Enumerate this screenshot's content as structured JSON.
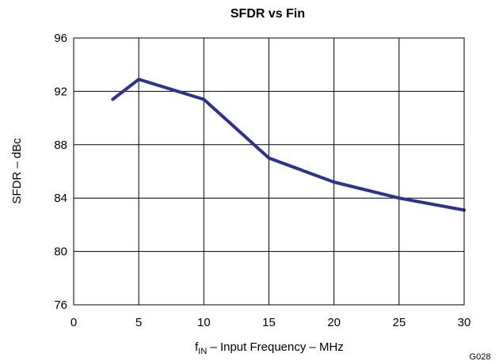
{
  "chart_data": {
    "type": "line",
    "title": "SFDR vs Fin",
    "xlabel": {
      "prefix": "f",
      "subscript": "IN",
      "suffix": " – Input Frequency – MHz"
    },
    "ylabel": "SFDR – dBc",
    "figure_code": "G028",
    "xlim": [
      0,
      30
    ],
    "ylim": [
      76,
      96
    ],
    "xticks": [
      "0",
      "5",
      "10",
      "15",
      "20",
      "25",
      "30"
    ],
    "yticks": [
      "76",
      "80",
      "84",
      "88",
      "92",
      "96"
    ],
    "grid": true,
    "series": [
      {
        "color": "#2e3192",
        "x": [
          3,
          5,
          10,
          15,
          20,
          25,
          30
        ],
        "y": [
          91.4,
          92.9,
          91.4,
          87.0,
          85.2,
          84.0,
          83.1
        ]
      }
    ]
  }
}
